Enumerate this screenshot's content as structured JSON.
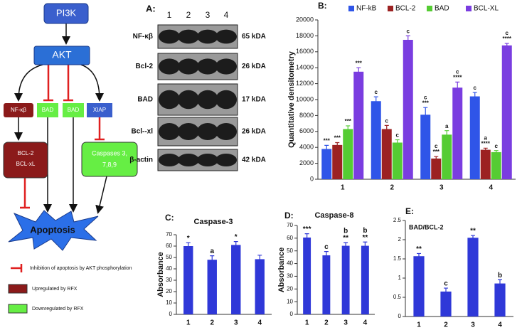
{
  "diagram": {
    "nodes": [
      "PI3K",
      "AKT",
      "NF-κβ",
      "BAD",
      "BAD",
      "XIAP",
      [
        "BCL-2",
        "BCL-xL"
      ],
      [
        "Caspases 3,",
        "7,8,9"
      ],
      "Apoptosis"
    ],
    "legend": [
      "Inhibition of apoptosis by AKT phosphorylation",
      "Upregulated by RFX",
      "Downregulated by RFX"
    ]
  },
  "blot": {
    "label": "A:",
    "lanes": [
      "1",
      "2",
      "3",
      "4"
    ],
    "rows": [
      {
        "protein": "NF-κβ",
        "size": "65 kDA"
      },
      {
        "protein": "Bcl-2",
        "size": "26 kDA"
      },
      {
        "protein": "BAD",
        "size": "17 kDA"
      },
      {
        "protein": "Bcl--xl",
        "size": "26 kDA"
      },
      {
        "protein": "β-actin",
        "size": "42 kDA"
      }
    ]
  },
  "chart_data": [
    {
      "type": "bar",
      "panel_label": "B:",
      "y_label": "Quantitative densitometry",
      "categories": [
        "1",
        "2",
        "3",
        "4"
      ],
      "series": [
        {
          "name": "NF-kB",
          "color": "#2f55e8",
          "values": [
            3800,
            9800,
            8100,
            10400
          ],
          "errors": [
            450,
            550,
            900,
            500
          ],
          "annotations": [
            [
              "***"
            ],
            [
              "c"
            ],
            [
              "c",
              "***"
            ],
            [
              "c"
            ]
          ]
        },
        {
          "name": "BCL-2",
          "color": "#9c2222",
          "values": [
            4300,
            6300,
            2600,
            3700
          ],
          "errors": [
            300,
            450,
            250,
            200
          ],
          "annotations": [
            [
              "***"
            ],
            [
              "c"
            ],
            [
              "c",
              "***"
            ],
            [
              "a",
              "****"
            ]
          ]
        },
        {
          "name": "BAD",
          "color": "#55cc33",
          "values": [
            6300,
            4600,
            5600,
            3400
          ],
          "errors": [
            400,
            350,
            500,
            200
          ],
          "annotations": [
            [
              "***"
            ],
            [
              "c"
            ],
            [
              "a"
            ],
            [
              "c"
            ]
          ]
        },
        {
          "name": "BCL-XL",
          "color": "#7a3de0",
          "values": [
            13500,
            17500,
            11500,
            16800
          ],
          "errors": [
            500,
            500,
            700,
            250
          ],
          "annotations": [
            [
              "***"
            ],
            [
              "c"
            ],
            [
              "c",
              "****"
            ],
            [
              "c",
              "****"
            ]
          ]
        }
      ],
      "ylim": [
        0,
        20000
      ],
      "yticks": [
        0,
        2000,
        4000,
        6000,
        8000,
        10000,
        12000,
        14000,
        16000,
        18000,
        20000
      ]
    },
    {
      "type": "bar",
      "panel_label": "C:",
      "title": "Caspase-3",
      "y_label": "Absorbance",
      "categories": [
        "1",
        "2",
        "3",
        "4"
      ],
      "color": "#2f38d8",
      "values": [
        60,
        48,
        61,
        48.5
      ],
      "errors": [
        3,
        3.5,
        3,
        3.5
      ],
      "annotations": [
        [
          "*"
        ],
        [
          "a"
        ],
        [
          "*"
        ],
        []
      ],
      "ylim": [
        0,
        70
      ],
      "yticks": [
        0,
        10,
        20,
        30,
        40,
        50,
        60,
        70
      ]
    },
    {
      "type": "bar",
      "panel_label": "D:",
      "title": "Caspase-8",
      "y_label": "Absorbance",
      "categories": [
        "1",
        "2",
        "3",
        "4"
      ],
      "color": "#2f38d8",
      "values": [
        60.5,
        46.5,
        54,
        54
      ],
      "errors": [
        3,
        3,
        2.5,
        3
      ],
      "annotations": [
        [
          "***"
        ],
        [
          "c"
        ],
        [
          "b",
          "**"
        ],
        [
          "b",
          "**"
        ]
      ],
      "ylim": [
        0,
        70
      ],
      "yticks": [
        0,
        10,
        20,
        30,
        40,
        50,
        60,
        70
      ]
    },
    {
      "type": "bar",
      "panel_label": "E:",
      "title": "BAD/BCL-2",
      "categories": [
        "1",
        "2",
        "3",
        "4"
      ],
      "color": "#2f38d8",
      "values": [
        1.57,
        0.65,
        2.05,
        0.86
      ],
      "errors": [
        0.07,
        0.09,
        0.06,
        0.1
      ],
      "annotations": [
        [
          "**"
        ],
        [
          "c"
        ],
        [
          "**"
        ],
        [
          "b"
        ]
      ],
      "ylim": [
        0,
        2.5
      ],
      "yticks": [
        0,
        0.5,
        1,
        1.5,
        2,
        2.5
      ]
    }
  ]
}
